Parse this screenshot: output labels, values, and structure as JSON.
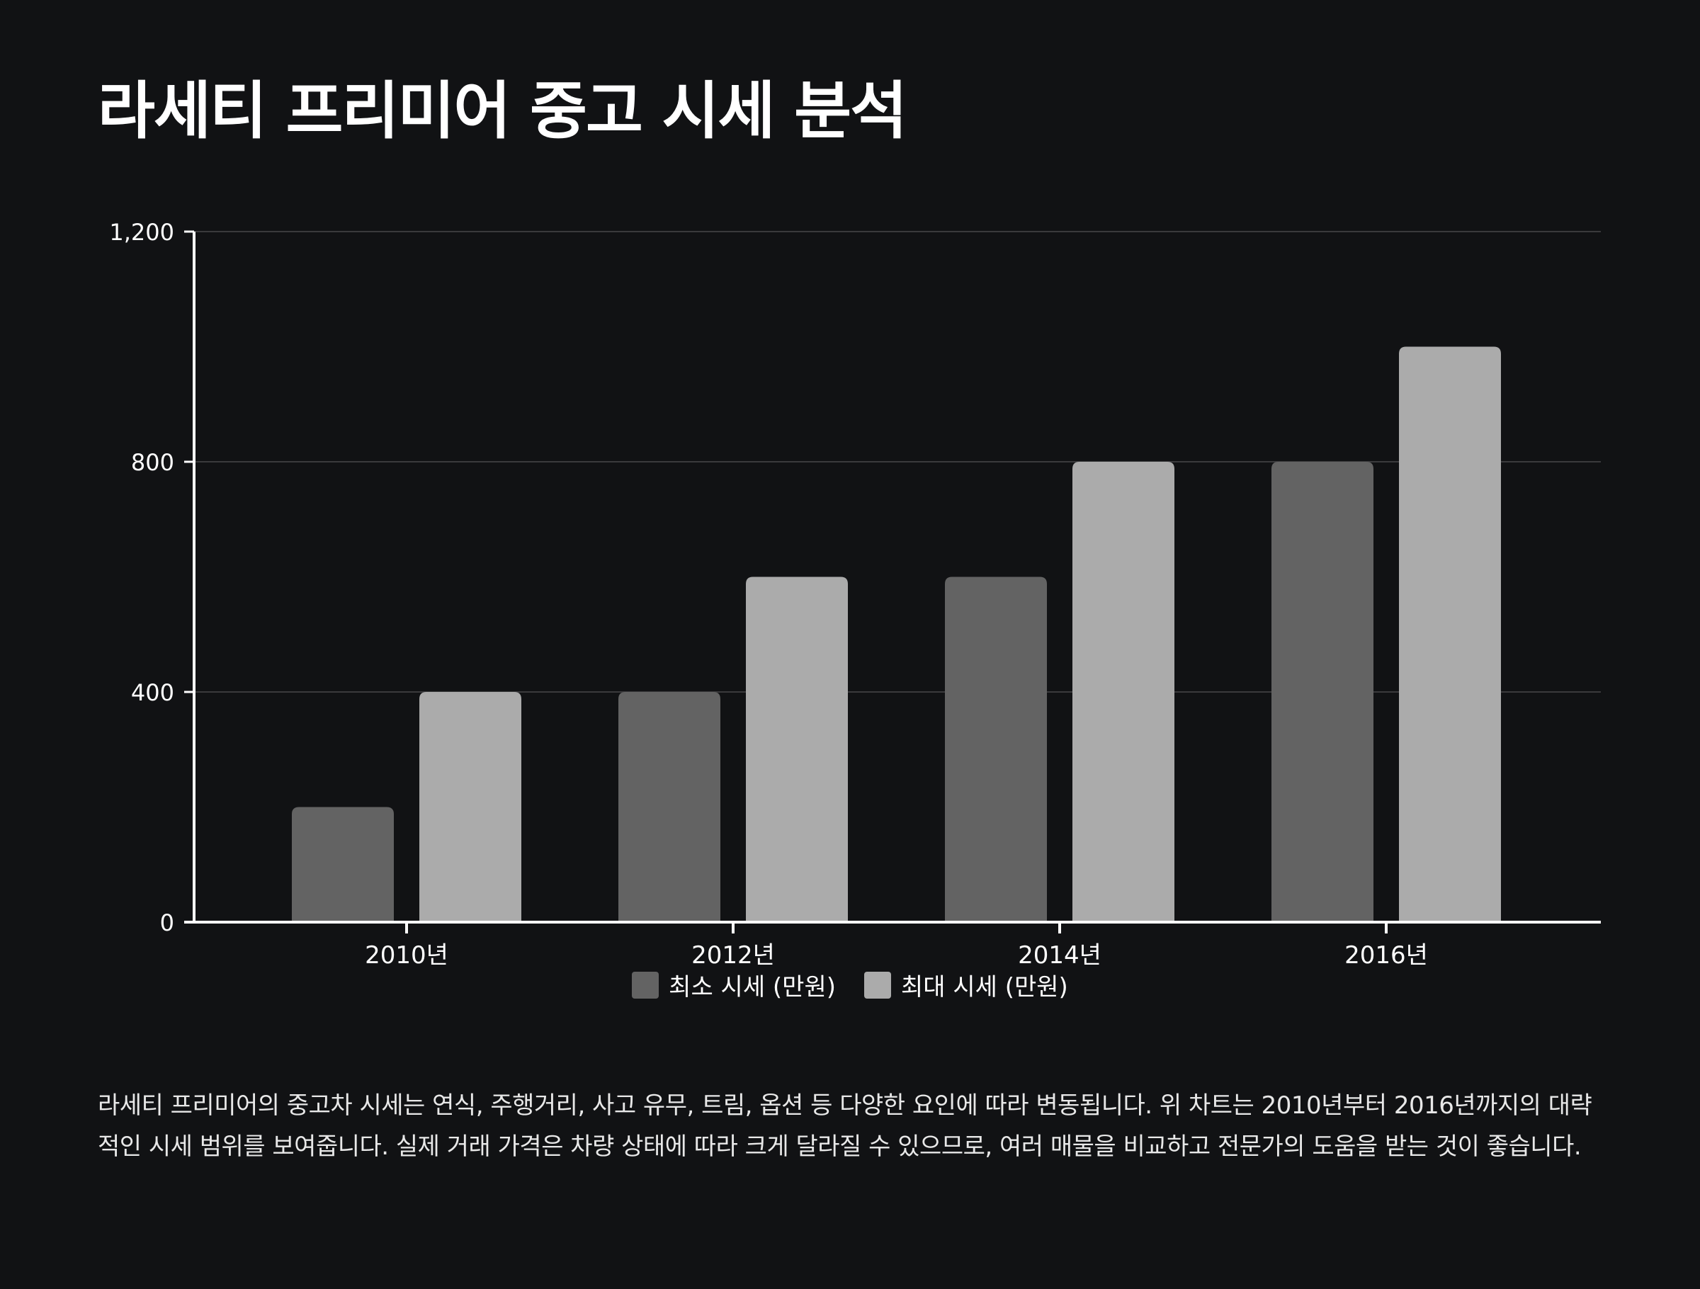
{
  "title": "라세티 프리미어 중고 시세 분석",
  "chart_data": {
    "type": "bar",
    "categories": [
      "2010년",
      "2012년",
      "2014년",
      "2016년"
    ],
    "series": [
      {
        "name": "최소 시세 (만원)",
        "values": [
          200,
          400,
          600,
          800
        ],
        "color": "#636363"
      },
      {
        "name": "최대 시세 (만원)",
        "values": [
          400,
          600,
          800,
          1000
        ],
        "color": "#ababab"
      }
    ],
    "ylim": [
      0,
      1200
    ],
    "yticks": [
      0,
      400,
      800,
      1200
    ],
    "ytick_labels": [
      "0",
      "400",
      "800",
      "1,200"
    ],
    "grid": true,
    "legend_position": "bottom",
    "xlabel": "",
    "ylabel": ""
  },
  "description": "라세티 프리미어의 중고차 시세는 연식, 주행거리, 사고 유무, 트림, 옵션 등 다양한 요인에 따라 변동됩니다. 위 차트는 2010년부터 2016년까지의 대략적인 시세 범위를 보여줍니다. 실제 거래 가격은 차량 상태에 따라 크게 달라질 수 있으므로, 여러 매물을 비교하고 전문가의 도움을 받는 것이 좋습니다."
}
